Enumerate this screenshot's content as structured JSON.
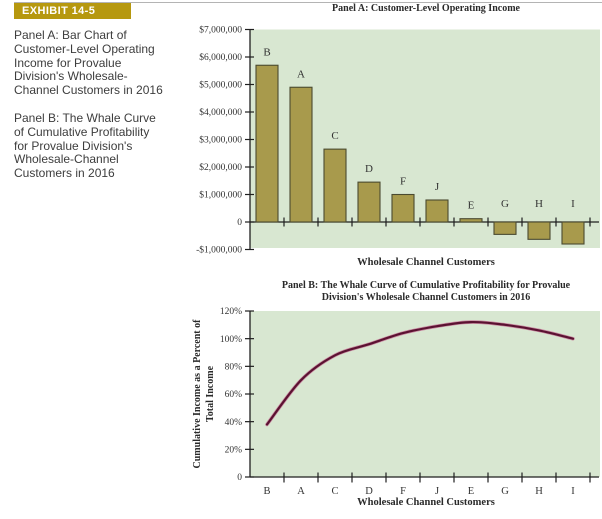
{
  "exhibit": {
    "banner": "EXHIBIT 14-5",
    "caption_a": "Panel A: Bar Chart of Customer-Level Operating Income for Provalue Division's Wholesale-Channel Customers in 2016",
    "caption_b": "Panel B: The Whale Curve of Cumulative Profitability for Provalue Division's Wholesale-Channel Customers in 2016"
  },
  "colors": {
    "banner_bg": "#b6980f",
    "plot_bg": "#d8e7d1",
    "bar_fill": "#a89a4c",
    "bar_stroke": "#4a4a30",
    "curve": "#5b1231",
    "axis": "#1f1f1f",
    "tick_text": "#333333"
  },
  "chart_data": [
    {
      "type": "bar",
      "title": "Panel A: Customer-Level Operating Income",
      "categories": [
        "B",
        "A",
        "C",
        "D",
        "F",
        "J",
        "E",
        "G",
        "H",
        "I"
      ],
      "values": [
        5700000,
        4900000,
        2650000,
        1450000,
        1000000,
        800000,
        120000,
        -450000,
        -630000,
        -800000
      ],
      "xlabel": "Wholesale Channel Customers",
      "ylabel": "",
      "ylim": [
        -1000000,
        7000000
      ],
      "grid": false,
      "legend": "none",
      "ytick_values": [
        7000000,
        6000000,
        5000000,
        4000000,
        3000000,
        2000000,
        1000000,
        0,
        -1000000
      ],
      "ytick_labels": [
        "$7,000,000",
        "$6,000,000",
        "$5,000,000",
        "$4,000,000",
        "$3,000,000",
        "$2,000,000",
        "$1,000,000",
        "0",
        "-$1,000,000"
      ]
    },
    {
      "type": "line",
      "title": "Panel B: The Whale Curve of Cumulative Profitability for Provalue Division's Wholesale Channel Customers in 2016",
      "title_lines": [
        "Panel B: The Whale Curve of Cumulative Profitability for Provalue",
        "Division's Wholesale Channel Customers in 2016"
      ],
      "categories": [
        "B",
        "A",
        "C",
        "D",
        "F",
        "J",
        "E",
        "G",
        "H",
        "I"
      ],
      "values": [
        38,
        70,
        88,
        96,
        104,
        109,
        112,
        110,
        106,
        100
      ],
      "unit": "%",
      "xlabel": "Wholesale Channel Customers",
      "ylabel": "Cumulative Income as a Percent of Total Income",
      "ylabel_lines": [
        "Cumulative Income as a Percent of",
        "Total Income"
      ],
      "ylim": [
        0,
        120
      ],
      "grid": false,
      "legend": "none",
      "ytick_values": [
        120,
        100,
        80,
        60,
        40,
        20,
        0
      ],
      "ytick_labels": [
        "120%",
        "100%",
        "80%",
        "60%",
        "40%",
        "20%",
        "0"
      ]
    }
  ]
}
